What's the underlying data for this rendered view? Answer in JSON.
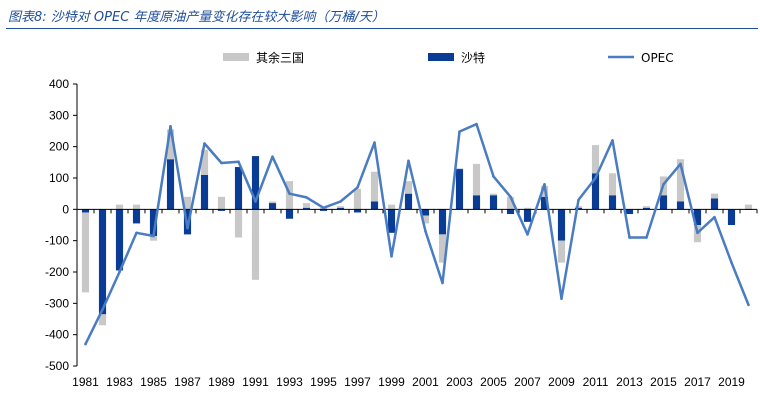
{
  "header": {
    "title": "图表8:  沙特对 OPEC 年度原油产量变化存在较大影响（万桶/天）"
  },
  "chart_data": {
    "type": "bar",
    "title": "沙特对 OPEC 年度原油产量变化存在较大影响（万桶/天）",
    "xlabel": "",
    "ylabel": "万桶/天",
    "ylim": [
      -500,
      400
    ],
    "yticks": [
      400,
      300,
      200,
      100,
      0,
      -100,
      -200,
      -300,
      -400,
      -500
    ],
    "xtick_labels": [
      "1981",
      "1983",
      "1985",
      "1987",
      "1989",
      "1991",
      "1993",
      "1995",
      "1997",
      "1999",
      "2001",
      "2003",
      "2005",
      "2007",
      "2009",
      "2011",
      "2013",
      "2015",
      "2017",
      "2019"
    ],
    "legend_position": "top",
    "categories": [
      "1981",
      "1982",
      "1983",
      "1984",
      "1985",
      "1986",
      "1987",
      "1988",
      "1989",
      "1990",
      "1991",
      "1992",
      "1993",
      "1994",
      "1995",
      "1996",
      "1997",
      "1998",
      "1999",
      "2000",
      "2001",
      "2002",
      "2003",
      "2004",
      "2005",
      "2006",
      "2007",
      "2008",
      "2009",
      "2010",
      "2011",
      "2012",
      "2013",
      "2014",
      "2015",
      "2016",
      "2017",
      "2018",
      "2019",
      "2020"
    ],
    "series": [
      {
        "name": "其余三国",
        "kind": "bar-stacked",
        "color": "#c8c8c8",
        "values": [
          -255,
          -35,
          15,
          15,
          -15,
          95,
          40,
          80,
          40,
          -90,
          -225,
          5,
          90,
          15,
          5,
          5,
          65,
          95,
          15,
          40,
          -25,
          -90,
          0,
          100,
          5,
          40,
          5,
          35,
          -70,
          5,
          90,
          70,
          0,
          5,
          60,
          135,
          -55,
          15,
          0,
          15
        ]
      },
      {
        "name": "沙特",
        "kind": "bar-stacked",
        "color": "#0a3c96",
        "values": [
          -10,
          -335,
          -195,
          -45,
          -85,
          160,
          -80,
          110,
          -5,
          135,
          170,
          20,
          -30,
          5,
          -5,
          5,
          -10,
          25,
          -75,
          50,
          -20,
          -80,
          130,
          45,
          45,
          -15,
          -40,
          40,
          -100,
          5,
          115,
          45,
          -15,
          5,
          45,
          25,
          -50,
          35,
          -50,
          0
        ]
      },
      {
        "name": "OPEC",
        "kind": "line",
        "color": "#4a7cc2",
        "values": [
          -430,
          -320,
          -200,
          -75,
          -85,
          265,
          -60,
          210,
          148,
          152,
          25,
          168,
          50,
          38,
          5,
          25,
          70,
          213,
          -150,
          155,
          -70,
          -235,
          248,
          272,
          105,
          40,
          -80,
          80,
          -285,
          30,
          100,
          220,
          -90,
          -90,
          80,
          145,
          -75,
          -25,
          -170,
          -305
        ]
      }
    ]
  }
}
